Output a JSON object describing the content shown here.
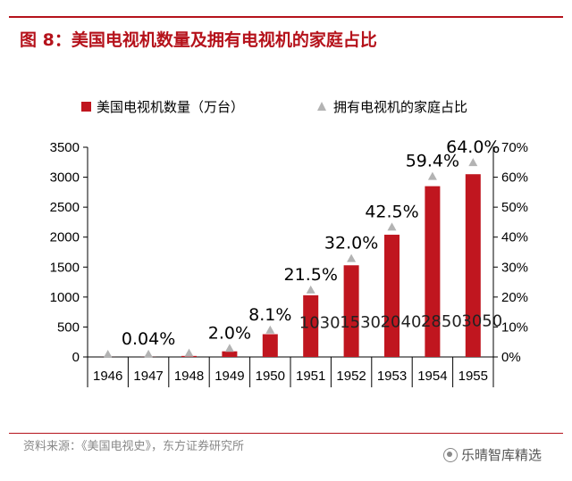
{
  "title": "图 8：美国电视机数量及拥有电视机的家庭占比",
  "source": "资料来源：《美国电视史》，东方证券研究所",
  "watermark": "乐晴智库精选",
  "colors": {
    "bar": "#c0161f",
    "marker": "#b3b3b3",
    "accent": "#b5121b"
  },
  "chart_data": {
    "type": "bar",
    "categories": [
      "1946",
      "1947",
      "1948",
      "1949",
      "1950",
      "1951",
      "1952",
      "1953",
      "1954",
      "1955"
    ],
    "series": [
      {
        "name": "美国电视机数量（万台）",
        "type": "bar",
        "axis": "left",
        "values": [
          1,
          2,
          17,
          94,
          380,
          1030,
          1530,
          2040,
          2850,
          3050
        ],
        "data_labels": [
          "",
          "",
          "",
          "",
          "",
          "1030",
          "1530",
          "2040",
          "2850",
          "3050"
        ]
      },
      {
        "name": "拥有电视机的家庭占比",
        "type": "scatter",
        "marker": "triangle",
        "axis": "right",
        "values": [
          0.0,
          0.04,
          0.4,
          2.0,
          8.1,
          21.5,
          32.0,
          42.5,
          59.4,
          64.0
        ],
        "data_labels": [
          "",
          "0.04%",
          "",
          "2.0%",
          "8.1%",
          "21.5%",
          "32.0%",
          "42.5%",
          "59.4%",
          "64.0%"
        ]
      }
    ],
    "ylim": [
      0,
      3500
    ],
    "yticks": [
      "0",
      "500",
      "1000",
      "1500",
      "2000",
      "2500",
      "3000",
      "3500"
    ],
    "y2lim": [
      0,
      70
    ],
    "y2ticks": [
      "0%",
      "10%",
      "20%",
      "30%",
      "40%",
      "50%",
      "60%",
      "70%"
    ],
    "legend_position": "top",
    "grid": false
  }
}
